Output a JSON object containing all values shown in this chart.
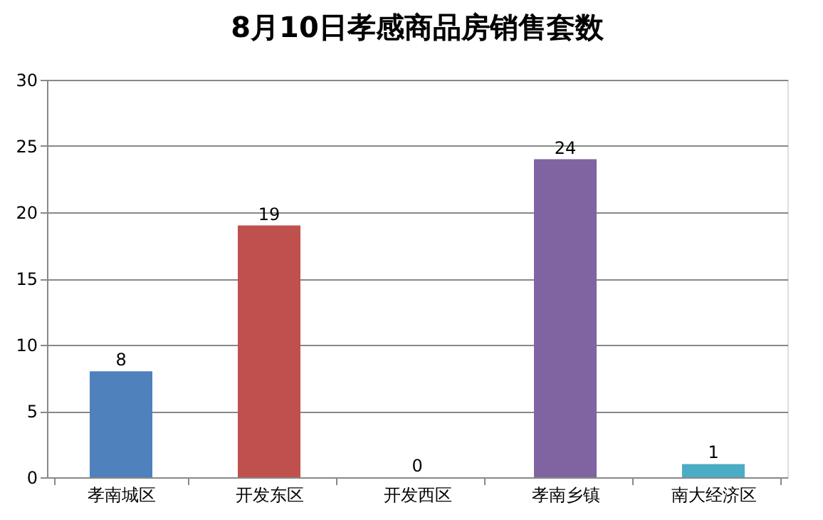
{
  "chart_data": {
    "type": "bar",
    "title": "8月10日孝感商品房销售套数",
    "categories": [
      "孝南城区",
      "开发东区",
      "开发西区",
      "孝南乡镇",
      "南大经济区"
    ],
    "values": [
      8,
      19,
      0,
      24,
      1
    ],
    "colors": [
      "#4f81bd",
      "#c0504d",
      "#9bbb59",
      "#8064a2",
      "#4bacc6"
    ],
    "ylim": [
      0,
      30
    ],
    "yticks": [
      0,
      5,
      10,
      15,
      20,
      25,
      30
    ],
    "grid": "y",
    "data_labels": true
  }
}
